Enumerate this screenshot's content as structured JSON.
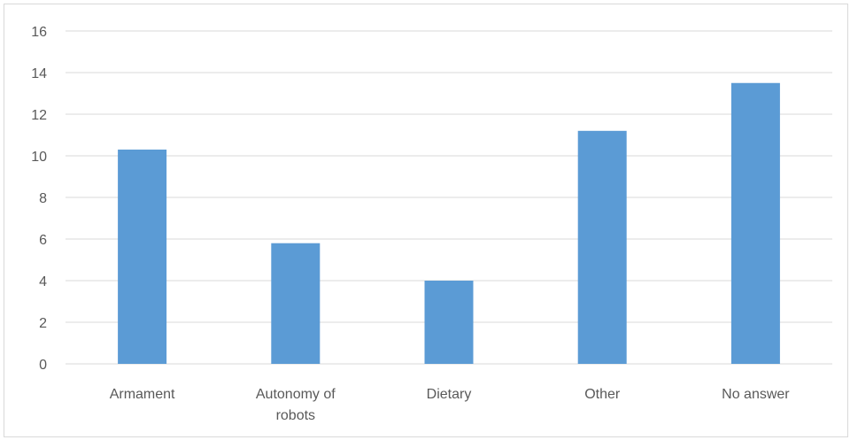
{
  "chart_data": {
    "type": "bar",
    "categories": [
      "Armament",
      "Autonomy of robots",
      "Dietary",
      "Other",
      "No answer"
    ],
    "category_lines": [
      [
        "Armament"
      ],
      [
        "Autonomy of",
        "robots"
      ],
      [
        "Dietary"
      ],
      [
        "Other"
      ],
      [
        "No answer"
      ]
    ],
    "values": [
      10.3,
      5.8,
      4.0,
      11.2,
      13.5
    ],
    "ylim": [
      0,
      16
    ],
    "yticks": [
      "0",
      "2",
      "4",
      "6",
      "8",
      "10",
      "12",
      "14",
      "16"
    ],
    "grid": true,
    "legend": "none",
    "title": "",
    "xlabel": "",
    "ylabel": "",
    "bar_color": "#5b9bd5",
    "grid_color": "#d9d9d9"
  }
}
